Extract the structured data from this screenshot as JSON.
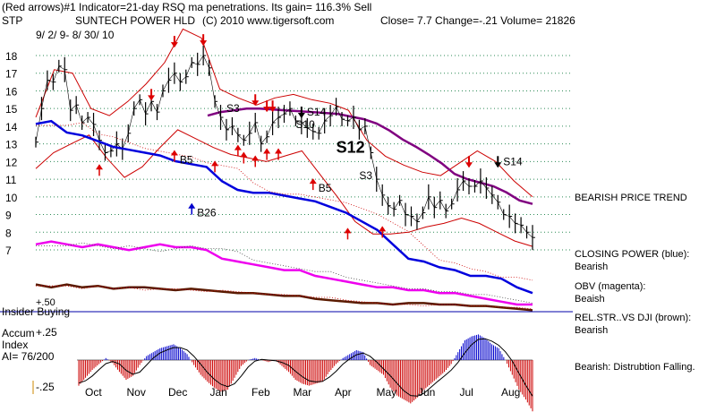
{
  "header": {
    "line1": "(Red arrows)#1 Indicator=21-day RSQ ma penetrations.  Its gain= 116.3% Sell",
    "symbol": "STP",
    "company": "SUNTECH POWER HLD",
    "copyright": "(C) 2010 www.tigersoft.com",
    "close_line": "Close=  7.7  Change=-.21 Volume=  21826",
    "date_range": "9/ 2/ 9- 8/ 30/ 10"
  },
  "right_panel": {
    "trend": "BEARISH PRICE TREND",
    "closing_power": [
      "CLOSING POWER (blue):",
      "Bearish"
    ],
    "obv": [
      "OBV (magenta):",
      "Beaish"
    ],
    "relstr": [
      "REL.STR..VS DJI (brown):",
      "Bearish"
    ],
    "accum": "Bearish:  Distrubtion Falling."
  },
  "colors": {
    "price": "#000000",
    "bands": "#cc0000",
    "ma": "#800080",
    "closing_power": "#0000dd",
    "obv": "#ee00ee",
    "relstr": "#5a1a00",
    "accum_pos": "#0000cc",
    "accum_neg": "#cc0000",
    "signals": "#dd0000",
    "buy_signal": "#0000cc",
    "grid": "#2e8b57"
  },
  "chart_data": {
    "type": "line",
    "title": "SUNTECH POWER HLD",
    "x_labels": [
      "Oct",
      "Nov",
      "Dec",
      "Jan",
      "Feb",
      "Mar",
      "Apr",
      "May",
      "Jun",
      "Jul",
      "Aug"
    ],
    "y_ticks": [
      7,
      8,
      9,
      10,
      11,
      12,
      13,
      14,
      15,
      16,
      17,
      18
    ],
    "ylim": [
      6.5,
      18.5
    ],
    "price_series": {
      "name": "price",
      "values": [
        13.1,
        15.0,
        16.6,
        16.5,
        17.4,
        17.2,
        14.9,
        15.2,
        14.2,
        14.5,
        14.1,
        13.2,
        12.5,
        12.6,
        13.0,
        12.7,
        13.6,
        15.0,
        15.5,
        14.7,
        15.4,
        14.8,
        16.0,
        16.6,
        17.0,
        16.5,
        16.8,
        17.6,
        17.5,
        18.0,
        17.3,
        15.4,
        14.5,
        13.8,
        14.0,
        13.5,
        13.2,
        13.6,
        14.2,
        13.0,
        13.4,
        14.2,
        14.5,
        14.7,
        15.0,
        14.3,
        14.2,
        13.9,
        13.7,
        13.6,
        14.3,
        14.6,
        15.1,
        14.4,
        14.3,
        14.5,
        13.8,
        14.0,
        12.5,
        11.0,
        10.1,
        9.5,
        9.3,
        9.8,
        9.0,
        8.9,
        8.6,
        9.1,
        10.0,
        9.4,
        9.8,
        9.2,
        9.6,
        10.4,
        10.9,
        10.6,
        10.6,
        10.9,
        10.5,
        10.1,
        9.7,
        9.0,
        8.9,
        8.5,
        8.4,
        8.0,
        7.7
      ]
    },
    "ma_series": {
      "name": "ma",
      "values": [
        14.6,
        14.8,
        14.9,
        15.0,
        15.0,
        14.95,
        14.9,
        14.85,
        14.8,
        14.75,
        14.7,
        14.55,
        14.4,
        14.15,
        13.75,
        13.25,
        12.85,
        12.4,
        11.9,
        11.3,
        11.0,
        10.8,
        10.6,
        10.25,
        9.8,
        9.6
      ]
    },
    "upper_band": [
      14.5,
      17.2,
      17.0,
      15.0,
      14.6,
      15.4,
      16.4,
      17.6,
      19.5,
      19.0,
      16.1,
      15.6,
      15.2,
      15.6,
      15.8,
      15.5,
      15.3,
      14.9,
      13.2,
      12.3,
      11.8,
      11.4,
      11.2,
      11.9,
      12.6,
      12.0,
      10.9,
      10.0
    ],
    "lower_band": [
      11.6,
      12.5,
      13.0,
      13.5,
      12.2,
      11.1,
      11.7,
      12.8,
      13.8,
      13.3,
      12.8,
      12.4,
      12.2,
      12.0,
      12.3,
      12.6,
      11.3,
      10.0,
      8.6,
      7.9,
      7.9,
      8.0,
      8.3,
      8.5,
      8.8,
      8.5,
      8.0,
      7.5,
      7.2
    ],
    "sub_series": [
      {
        "name": "closing_power",
        "values": [
          10.3,
          10.4,
          10.0,
          9.9,
          9.7,
          9.5,
          9.4,
          9.3,
          9.2,
          9.0,
          8.9,
          8.8,
          8.3,
          8.0,
          7.9,
          7.9,
          7.8,
          7.7,
          7.6,
          7.4,
          7.2,
          6.9,
          6.6,
          6.1,
          5.6,
          5.5,
          5.3,
          5.2,
          5.0,
          5.0,
          4.9,
          4.6,
          4.4
        ]
      },
      {
        "name": "obv",
        "values": [
          6.1,
          6.2,
          6.1,
          6.0,
          6.1,
          6.0,
          5.9,
          6.0,
          6.1,
          6.0,
          6.0,
          5.9,
          5.6,
          5.5,
          5.4,
          5.3,
          5.2,
          5.2,
          5.0,
          4.9,
          4.8,
          4.7,
          4.6,
          4.6,
          4.5,
          4.5,
          4.4,
          4.4,
          4.3,
          4.2,
          4.1,
          4.0,
          4.0
        ]
      },
      {
        "name": "relstr",
        "values": [
          4.7,
          4.6,
          4.7,
          4.6,
          4.65,
          4.55,
          4.6,
          4.6,
          4.55,
          4.5,
          4.55,
          4.5,
          4.45,
          4.4,
          4.4,
          4.35,
          4.3,
          4.3,
          4.2,
          4.15,
          4.1,
          4.05,
          4.05,
          4.0,
          4.05,
          4.05,
          4.0,
          4.0,
          3.95,
          3.95,
          3.9,
          3.85,
          3.8
        ]
      }
    ],
    "accum_index": {
      "ticks": [
        "+.50",
        "+.25",
        "-.25"
      ],
      "values": [
        -0.26,
        -0.18,
        -0.1,
        -0.04,
        0.02,
        -0.03,
        -0.12,
        -0.2,
        -0.16,
        -0.05,
        0.04,
        0.08,
        0.12,
        0.14,
        0.16,
        0.12,
        0.06,
        -0.05,
        -0.15,
        -0.22,
        -0.28,
        -0.32,
        -0.3,
        -0.18,
        -0.06,
        0.0,
        0.02,
        0.0,
        -0.02,
        0.0,
        -0.06,
        -0.12,
        -0.2,
        -0.24,
        -0.26,
        -0.24,
        -0.22,
        -0.12,
        -0.04,
        0.02,
        0.06,
        0.1,
        0.08,
        -0.05,
        -0.1,
        -0.15,
        -0.28,
        -0.36,
        -0.4,
        -0.44,
        -0.38,
        -0.3,
        -0.24,
        -0.18,
        -0.12,
        -0.04,
        0.08,
        0.2,
        0.24,
        0.26,
        0.22,
        0.16,
        0.12,
        0.0,
        -0.15,
        -0.3,
        -0.4,
        -0.52
      ],
      "labels": [
        "Accum",
        "Index",
        "AI= 76/200"
      ]
    },
    "insider_label": "Insider Buying",
    "signals": [
      {
        "x": 40,
        "y": 14.85,
        "dir": "down",
        "text": ""
      },
      {
        "x": 41,
        "y": 14.85,
        "dir": "down",
        "text": ""
      },
      {
        "x": 46,
        "y": 14.5,
        "dir": "down",
        "text": "S14"
      },
      {
        "x": 24,
        "y": 18.5,
        "dir": "down",
        "text": ""
      },
      {
        "x": 29,
        "y": 18.6,
        "dir": "down",
        "text": ""
      },
      {
        "x": 20,
        "y": 15.5,
        "dir": "down",
        "text": ""
      },
      {
        "x": 38,
        "y": 15.2,
        "dir": "down",
        "text": ""
      },
      {
        "x": 75,
        "y": 11.7,
        "dir": "down",
        "text": ""
      },
      {
        "x": 80,
        "y": 11.7,
        "dir": "down",
        "text": "S14"
      },
      {
        "x": 11,
        "y": 11.8,
        "dir": "up",
        "text": ""
      },
      {
        "x": 36,
        "y": 12.5,
        "dir": "up",
        "text": ""
      },
      {
        "x": 38,
        "y": 12.3,
        "dir": "up",
        "text": ""
      },
      {
        "x": 31,
        "y": 12.0,
        "dir": "up",
        "text": ""
      },
      {
        "x": 35,
        "y": 12.9,
        "dir": "up",
        "text": ""
      },
      {
        "x": 40,
        "y": 12.7,
        "dir": "up",
        "text": ""
      },
      {
        "x": 42,
        "y": 12.7,
        "dir": "up",
        "text": ""
      },
      {
        "x": 48,
        "y": 11.0,
        "dir": "up",
        "text": "B5"
      },
      {
        "x": 54,
        "y": 8.2,
        "dir": "up",
        "text": ""
      },
      {
        "x": 60,
        "y": 8.3,
        "dir": "up",
        "text": ""
      },
      {
        "x": 24,
        "y": 12.6,
        "dir": "up",
        "text": "B5"
      },
      {
        "x": 27,
        "y": 9.6,
        "dir": "up",
        "text": "B26"
      }
    ],
    "text_marks": [
      {
        "x": 33,
        "y": 14.8,
        "text": "S3"
      },
      {
        "x": 45,
        "y": 13.9,
        "text": "S10"
      },
      {
        "x": 52,
        "y": 12.5,
        "text": "S12"
      },
      {
        "x": 56,
        "y": 11.0,
        "text": "S3"
      }
    ]
  }
}
